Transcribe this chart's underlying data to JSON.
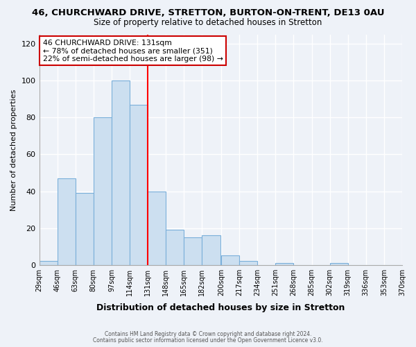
{
  "title_main": "46, CHURCHWARD DRIVE, STRETTON, BURTON-ON-TRENT, DE13 0AU",
  "title_sub": "Size of property relative to detached houses in Stretton",
  "xlabel": "Distribution of detached houses by size in Stretton",
  "ylabel": "Number of detached properties",
  "bin_edges": [
    29,
    46,
    63,
    80,
    97,
    114,
    131,
    148,
    165,
    182,
    200,
    217,
    234,
    251,
    268,
    285,
    302,
    319,
    336,
    353,
    370
  ],
  "bar_heights": [
    2,
    47,
    39,
    80,
    100,
    87,
    40,
    19,
    15,
    16,
    5,
    2,
    0,
    1,
    0,
    0,
    1,
    0,
    0,
    0
  ],
  "bar_color": "#ccdff0",
  "bar_edge_color": "#7aafda",
  "red_line_x": 131,
  "ylim": [
    0,
    125
  ],
  "yticks": [
    0,
    20,
    40,
    60,
    80,
    100,
    120
  ],
  "annotation_title": "46 CHURCHWARD DRIVE: 131sqm",
  "annotation_line1": "← 78% of detached houses are smaller (351)",
  "annotation_line2": "22% of semi-detached houses are larger (98) →",
  "annotation_box_color": "#ffffff",
  "annotation_box_edge_color": "#cc0000",
  "footnote1": "Contains HM Land Registry data © Crown copyright and database right 2024.",
  "footnote2": "Contains public sector information licensed under the Open Government Licence v3.0.",
  "background_color": "#eef2f8",
  "plot_background_color": "#eef2f8",
  "grid_color": "#ffffff",
  "spine_color": "#aaaaaa"
}
